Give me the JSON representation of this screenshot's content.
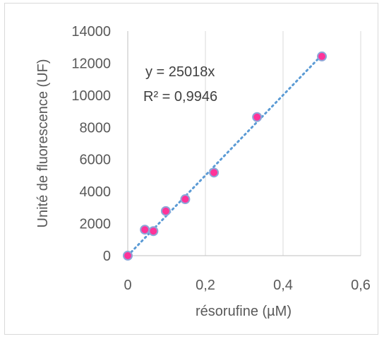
{
  "chart_data": {
    "type": "scatter",
    "xlabel": "résorufine (µM)",
    "ylabel": "Unité de fluorescence (UF)",
    "xlim": [
      0,
      0.6
    ],
    "ylim": [
      0,
      14000
    ],
    "x_ticks": [
      0,
      0.2,
      0.4,
      0.6
    ],
    "x_tick_labels": [
      "0",
      "0,2",
      "0,4",
      "0,6"
    ],
    "y_ticks": [
      0,
      2000,
      4000,
      6000,
      8000,
      10000,
      12000,
      14000
    ],
    "y_tick_labels": [
      "0",
      "2000",
      "4000",
      "6000",
      "8000",
      "10000",
      "12000",
      "14000"
    ],
    "grid": "vertical",
    "series": [
      {
        "x": [
          0,
          0.044,
          0.066,
          0.098,
          0.148,
          0.222,
          0.333,
          0.5
        ],
        "y": [
          0,
          1620,
          1530,
          2780,
          3520,
          5180,
          8640,
          12420
        ],
        "marker_fill": "#ff3399",
        "marker_edge": "#8ea6d8"
      }
    ],
    "trendline": {
      "type": "linear",
      "slope": 25018,
      "x_range": [
        0,
        0.5
      ],
      "color": "#5b9bd5",
      "style": "dotted",
      "equation": "y = 25018x",
      "r_squared": "R² = 0,9946"
    }
  }
}
